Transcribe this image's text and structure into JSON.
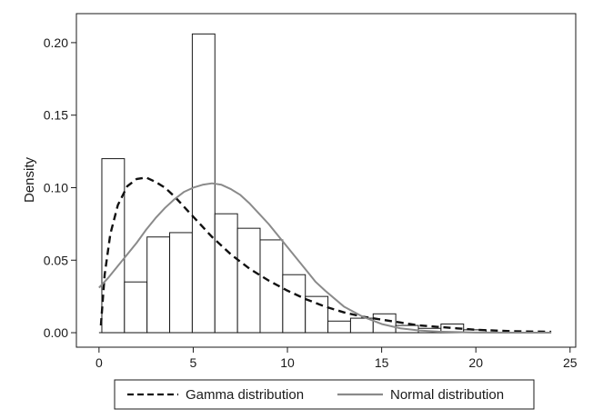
{
  "chart_data": {
    "type": "bar",
    "title": "",
    "xlabel": "",
    "ylabel": "Density",
    "xlim": [
      -1.2,
      25.3
    ],
    "ylim": [
      -0.01,
      0.22
    ],
    "x_ticks": [
      0,
      5,
      10,
      15,
      20,
      25
    ],
    "x_tick_labels": [
      "0",
      "5",
      "10",
      "15",
      "20",
      "25"
    ],
    "y_ticks": [
      0.0,
      0.05,
      0.1,
      0.15,
      0.2
    ],
    "y_tick_labels": [
      "0.00",
      "0.05",
      "0.10",
      "0.15",
      "0.20"
    ],
    "grid": false,
    "legend_placement": "bottom",
    "bin_width": 1.2,
    "bars": [
      {
        "x0": 0.15,
        "value": 0.12
      },
      {
        "x0": 1.35,
        "value": 0.035
      },
      {
        "x0": 2.55,
        "value": 0.066
      },
      {
        "x0": 3.75,
        "value": 0.069
      },
      {
        "x0": 4.95,
        "value": 0.206
      },
      {
        "x0": 6.15,
        "value": 0.082
      },
      {
        "x0": 7.35,
        "value": 0.072
      },
      {
        "x0": 8.55,
        "value": 0.064
      },
      {
        "x0": 9.75,
        "value": 0.04
      },
      {
        "x0": 10.95,
        "value": 0.025
      },
      {
        "x0": 12.15,
        "value": 0.008
      },
      {
        "x0": 13.35,
        "value": 0.01
      },
      {
        "x0": 14.55,
        "value": 0.013
      },
      {
        "x0": 15.75,
        "value": 0.005
      },
      {
        "x0": 16.95,
        "value": 0.003
      },
      {
        "x0": 18.15,
        "value": 0.006
      },
      {
        "x0": 19.35,
        "value": 0.002
      }
    ],
    "series": [
      {
        "name": "Gamma distribution",
        "style": "dashed",
        "color": "#111111",
        "x": [
          0.1,
          0.3,
          0.6,
          1.0,
          1.5,
          2.0,
          2.5,
          3.0,
          3.5,
          4.0,
          5.0,
          6.0,
          7.0,
          8.0,
          9.0,
          10.0,
          11.0,
          12.0,
          13.0,
          14.0,
          15.0,
          16.0,
          17.0,
          18.0,
          19.0,
          20.0,
          22.0,
          24.0
        ],
        "y": [
          0.005,
          0.04,
          0.068,
          0.088,
          0.101,
          0.106,
          0.107,
          0.104,
          0.1,
          0.094,
          0.08,
          0.066,
          0.054,
          0.044,
          0.036,
          0.029,
          0.023,
          0.018,
          0.014,
          0.011,
          0.009,
          0.007,
          0.005,
          0.004,
          0.003,
          0.002,
          0.001,
          0.0006
        ]
      },
      {
        "name": "Normal distribution",
        "style": "solid",
        "color": "#8a8a8a",
        "x": [
          0.0,
          0.5,
          1.0,
          1.5,
          2.0,
          2.5,
          3.0,
          3.5,
          4.0,
          4.5,
          5.0,
          5.5,
          6.0,
          6.5,
          7.0,
          7.5,
          8.0,
          8.5,
          9.0,
          9.5,
          10.0,
          10.5,
          11.0,
          11.5,
          12.0,
          13.0,
          14.0,
          15.0,
          16.0,
          17.0,
          18.0,
          20.0,
          22.0,
          24.0
        ],
        "y": [
          0.031,
          0.038,
          0.046,
          0.054,
          0.062,
          0.071,
          0.079,
          0.086,
          0.092,
          0.097,
          0.1,
          0.102,
          0.103,
          0.102,
          0.099,
          0.095,
          0.089,
          0.082,
          0.075,
          0.067,
          0.059,
          0.051,
          0.043,
          0.035,
          0.029,
          0.018,
          0.011,
          0.006,
          0.003,
          0.0015,
          0.0007,
          0.0001,
          0.0,
          0.0
        ]
      }
    ]
  }
}
